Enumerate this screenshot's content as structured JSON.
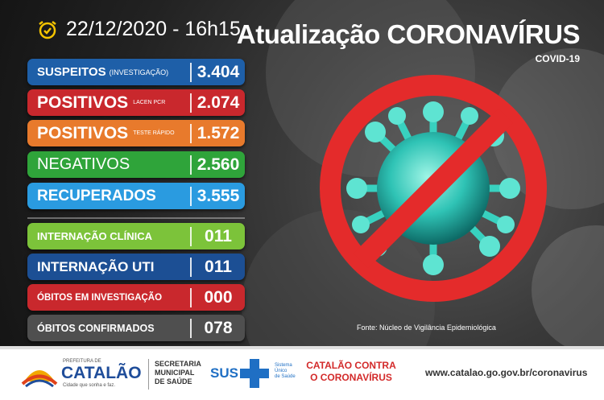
{
  "header": {
    "datetime": "22/12/2020 - 16h15",
    "title": "Atualização CORONAVÍRUS",
    "subtitle": "COVID-19"
  },
  "stats": [
    {
      "label": "SUSPEITOS",
      "sublabel": "(INVESTIGAÇÃO)",
      "value": "3.404",
      "color": "#1e5fa8"
    },
    {
      "label": "POSITIVOS",
      "sublabel": "LACEN PCR",
      "value": "2.074",
      "color": "#c9282d"
    },
    {
      "label": "POSITIVOS",
      "sublabel": "TESTE RÁPIDO",
      "value": "1.572",
      "color": "#e87a2c"
    },
    {
      "label": "NEGATIVOS",
      "sublabel": "",
      "value": "2.560",
      "color": "#2fa43a"
    },
    {
      "label": "RECUPERADOS",
      "sublabel": "",
      "value": "3.555",
      "color": "#2a9be0"
    },
    {
      "label": "INTERNAÇÃO CLÍNICA",
      "sublabel": "",
      "value": "011",
      "color": "#7cc33a"
    },
    {
      "label": "INTERNAÇÃO UTI",
      "sublabel": "",
      "value": "011",
      "color": "#1c4f94"
    },
    {
      "label": "ÓBITOS EM INVESTIGAÇÃO",
      "sublabel": "",
      "value": "000",
      "color": "#c9282d"
    },
    {
      "label": "ÓBITOS CONFIRMADOS",
      "sublabel": "",
      "value": "078",
      "color": "#4f4f4f"
    }
  ],
  "source": "Fonte: Núcleo de Vigilância Epidemiológica",
  "footer": {
    "prefeitura": "PREFEITURA DE",
    "city": "CATALÃO",
    "slogan": "Cidade que sonha e faz.",
    "secretaria": [
      "SECRETARIA",
      "MUNICIPAL",
      "DE SAÚDE"
    ],
    "sus": "SUS",
    "sus_sub": [
      "Sistema",
      "Único",
      "de Saúde"
    ],
    "campaign": [
      "CATALÃO CONTRA",
      "O CORONAVÍRUS"
    ],
    "website": "www.catalao.go.gov.br/coronavirus"
  },
  "icons": [
    "alarm-clock-icon",
    "virus-prohibited-icon",
    "sun-logo-icon",
    "sus-cross-icon"
  ]
}
